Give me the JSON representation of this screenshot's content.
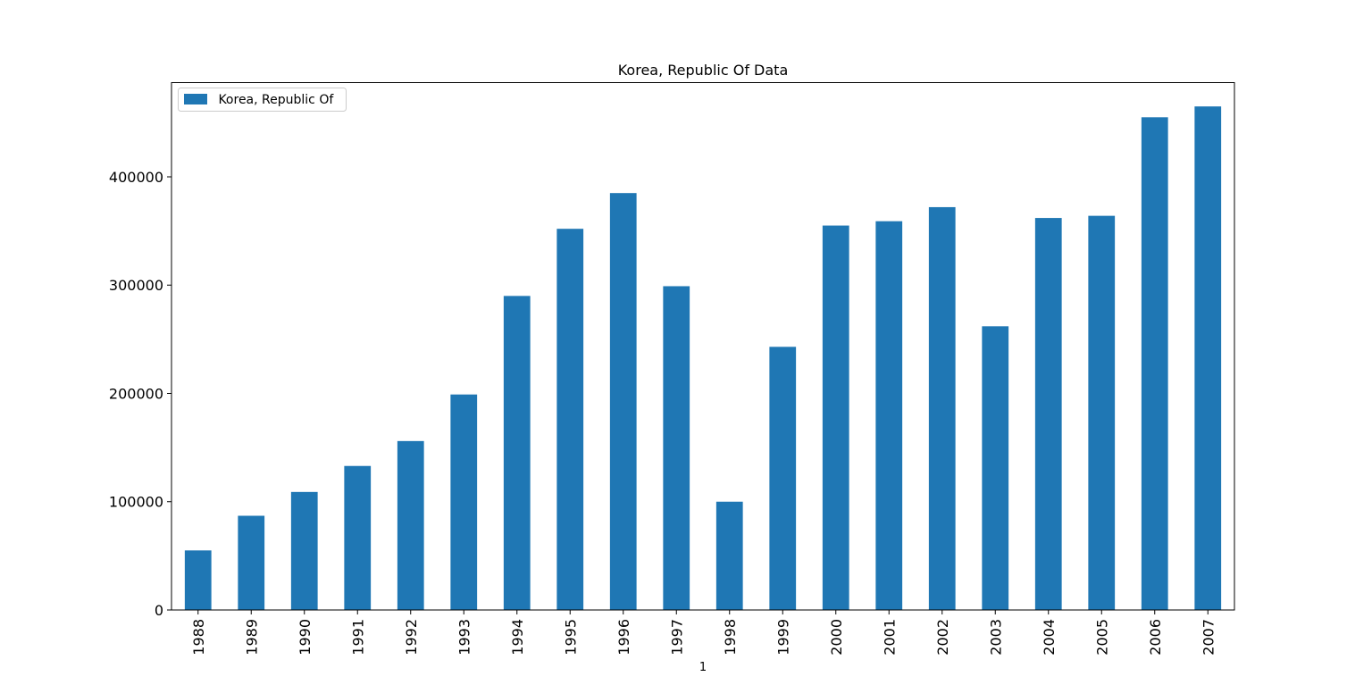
{
  "chart_data": {
    "type": "bar",
    "title": "Korea, Republic Of Data",
    "xlabel": "1",
    "ylabel": "",
    "categories": [
      "1988",
      "1989",
      "1990",
      "1991",
      "1992",
      "1993",
      "1994",
      "1995",
      "1996",
      "1997",
      "1998",
      "1999",
      "2000",
      "2001",
      "2002",
      "2003",
      "2004",
      "2005",
      "2006",
      "2007"
    ],
    "series": [
      {
        "name": " Korea, Republic Of",
        "color": "#1f77b4",
        "values": [
          55000,
          87000,
          109000,
          133000,
          156000,
          199000,
          290000,
          352000,
          385000,
          299000,
          100000,
          243000,
          355000,
          359000,
          372000,
          262000,
          362000,
          364000,
          455000,
          465000
        ]
      }
    ],
    "ylim": [
      0,
      487000
    ],
    "yticks": [
      0,
      100000,
      200000,
      300000,
      400000
    ],
    "ytick_labels": [
      "0",
      "100000",
      "200000",
      "300000",
      "400000"
    ],
    "grid": false,
    "legend_position": "upper-left"
  }
}
